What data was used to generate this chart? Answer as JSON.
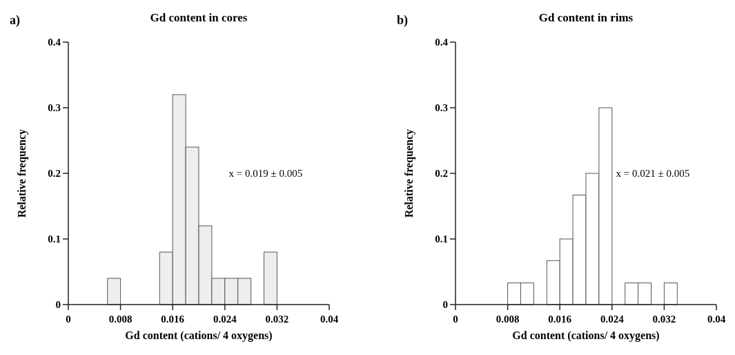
{
  "chart_data": [
    {
      "type": "histogram",
      "title": "Gd content in cores",
      "xlabel": "Gd content (cations/ 4 oxygens)",
      "ylabel": "Relative frequency",
      "annotations": [
        "a)",
        "x = 0.019 ± 0.005"
      ],
      "bins": [
        0.006,
        0.008,
        0.01,
        0.012,
        0.014,
        0.016,
        0.018,
        0.02,
        0.022,
        0.024,
        0.026,
        0.028,
        0.03,
        0.032
      ],
      "values": [
        0.04,
        0,
        0,
        0,
        0.08,
        0.32,
        0.24,
        0.12,
        0.04,
        0.04,
        0.04,
        0,
        0.08
      ],
      "color": "#eeeeee",
      "xlim": [
        0,
        0.04
      ],
      "xticks": [
        0,
        0.008,
        0.016,
        0.024,
        0.032,
        0.04
      ],
      "ylim": [
        0,
        0.4
      ],
      "yticks": [
        0,
        0.1,
        0.2,
        0.3,
        0.4
      ],
      "grid": false
    },
    {
      "type": "histogram",
      "title": "Gd content in rims",
      "xlabel": "Gd content (cations/ 4 oxygens)",
      "ylabel": "Relative frequency",
      "annotations": [
        "b)",
        "x = 0.021 ± 0.005"
      ],
      "bins": [
        0.008,
        0.01,
        0.012,
        0.014,
        0.016,
        0.018,
        0.02,
        0.022,
        0.024,
        0.026,
        0.028,
        0.03,
        0.032,
        0.034
      ],
      "values": [
        0.033,
        0.033,
        0,
        0.067,
        0.1,
        0.167,
        0.2,
        0.3,
        0,
        0.033,
        0.033,
        0,
        0.033
      ],
      "color": "#ffffff",
      "xlim": [
        0,
        0.04
      ],
      "xticks": [
        0,
        0.008,
        0.016,
        0.024,
        0.032,
        0.04
      ],
      "ylim": [
        0,
        0.4
      ],
      "yticks": [
        0,
        0.1,
        0.2,
        0.3,
        0.4
      ],
      "grid": false
    }
  ]
}
